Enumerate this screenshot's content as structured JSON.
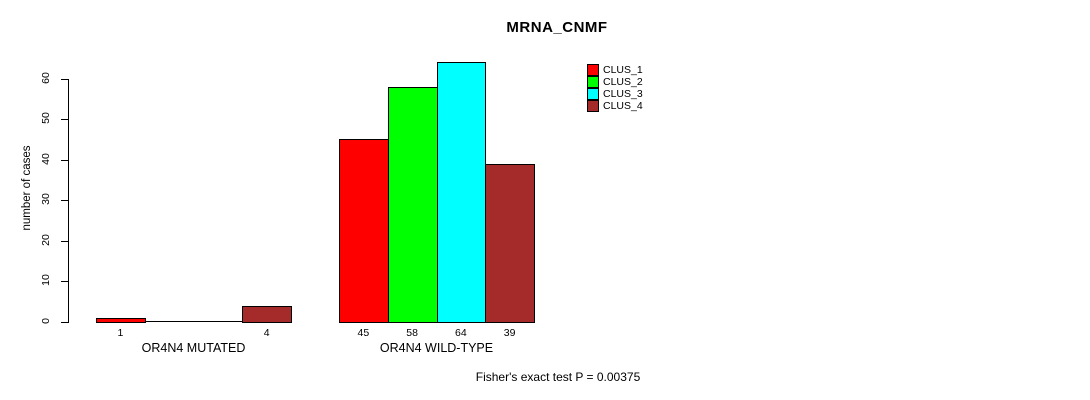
{
  "title": "MRNA_CNMF",
  "annotation": "Fisher's exact test P = 0.00375",
  "chart_data": {
    "type": "bar",
    "title": "MRNA_CNMF",
    "xlabel": "",
    "ylabel": "number of cases",
    "categories": [
      "OR4N4 MUTATED",
      "OR4N4 WILD-TYPE"
    ],
    "series": [
      {
        "name": "CLUS_1",
        "color": "#ff0000",
        "values": [
          1,
          45
        ]
      },
      {
        "name": "CLUS_2",
        "color": "#00ff00",
        "values": [
          0,
          58
        ]
      },
      {
        "name": "CLUS_3",
        "color": "#00ffff",
        "values": [
          0,
          64
        ]
      },
      {
        "name": "CLUS_4",
        "color": "#a52a2a",
        "values": [
          4,
          39
        ]
      }
    ],
    "ylim": [
      0,
      60
    ],
    "yticks": [
      0,
      10,
      20,
      30,
      40,
      50,
      60
    ],
    "grid": false,
    "bar_border_color": "#000000",
    "legend_position": "top-right",
    "value_label_rule": "bar value printed under every non-zero bar",
    "annotation": "Fisher's exact test P = 0.00375"
  }
}
